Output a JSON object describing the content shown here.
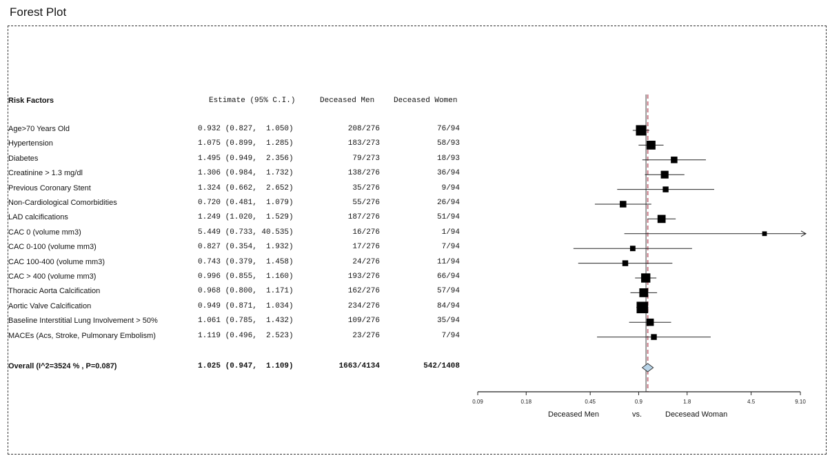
{
  "page": {
    "title": "Forest Plot"
  },
  "headers": {
    "risk_factors": "Risk Factors",
    "estimate": "Estimate (95% C.I.)",
    "deceased_men": "Deceased Men",
    "deceased_women": "Deceased Women"
  },
  "chart_data": {
    "type": "forest",
    "x_scale": "log",
    "xlim": [
      0.09,
      9.1
    ],
    "xticks": [
      {
        "value": 0.09,
        "label": "0.09"
      },
      {
        "value": 0.18,
        "label": "0.18"
      },
      {
        "value": 0.45,
        "label": "0.45"
      },
      {
        "value": 0.9,
        "label": "0.9"
      },
      {
        "value": 1.8,
        "label": "1.8"
      },
      {
        "value": 4.5,
        "label": "4.5"
      },
      {
        "value": 9.1,
        "label": "9.10"
      }
    ],
    "reference_line": 1.0,
    "overall_line": 1.025,
    "axis_captions": {
      "left": "Deceased Men",
      "middle": "vs.",
      "right": "Decesead Woman"
    },
    "rows": [
      {
        "label": "Age>70 Years Old",
        "estimate_text": "0.932 (0.827,  1.050)",
        "est": 0.932,
        "lo": 0.827,
        "hi": 1.05,
        "men": "208/276",
        "women": "76/94",
        "weight": 1.0
      },
      {
        "label": "Hypertension",
        "estimate_text": "1.075 (0.899,  1.285)",
        "est": 1.075,
        "lo": 0.899,
        "hi": 1.285,
        "men": "183/273",
        "women": "58/93",
        "weight": 0.8
      },
      {
        "label": "Diabetes",
        "estimate_text": "1.495 (0.949,  2.356)",
        "est": 1.495,
        "lo": 0.949,
        "hi": 2.356,
        "men": "79/273",
        "women": "18/93",
        "weight": 0.5
      },
      {
        "label": "Creatinine > 1.3 mg/dl",
        "estimate_text": "1.306 (0.984,  1.732)",
        "est": 1.306,
        "lo": 0.984,
        "hi": 1.732,
        "men": "138/276",
        "women": "36/94",
        "weight": 0.65
      },
      {
        "label": "Previous Coronary Stent",
        "estimate_text": "1.324 (0.662,  2.652)",
        "est": 1.324,
        "lo": 0.662,
        "hi": 2.652,
        "men": "35/276",
        "women": "9/94",
        "weight": 0.4
      },
      {
        "label": "Non-Cardiological Comorbidities",
        "estimate_text": "0.720 (0.481,  1.079)",
        "est": 0.72,
        "lo": 0.481,
        "hi": 1.079,
        "men": "55/276",
        "women": "26/94",
        "weight": 0.5
      },
      {
        "label": "LAD calcifications",
        "estimate_text": "1.249 (1.020,  1.529)",
        "est": 1.249,
        "lo": 1.02,
        "hi": 1.529,
        "men": "187/276",
        "women": "51/94",
        "weight": 0.7
      },
      {
        "label": "CAC 0 (volume mm3)",
        "estimate_text": "5.449 (0.733, 40.535)",
        "est": 5.449,
        "lo": 0.733,
        "hi": 40.535,
        "men": "16/276",
        "women": "1/94",
        "weight": 0.25,
        "arrow_right": true
      },
      {
        "label": "CAC 0-100 (volume mm3)",
        "estimate_text": "0.827 (0.354,  1.932)",
        "est": 0.827,
        "lo": 0.354,
        "hi": 1.932,
        "men": "17/276",
        "women": "7/94",
        "weight": 0.35
      },
      {
        "label": "CAC 100-400 (volume mm3)",
        "estimate_text": "0.743 (0.379,  1.458)",
        "est": 0.743,
        "lo": 0.379,
        "hi": 1.458,
        "men": "24/276",
        "women": "11/94",
        "weight": 0.4
      },
      {
        "label": "CAC > 400 (volume mm3)",
        "estimate_text": "0.996 (0.855,  1.160)",
        "est": 0.996,
        "lo": 0.855,
        "hi": 1.16,
        "men": "193/276",
        "women": "66/94",
        "weight": 0.85
      },
      {
        "label": "Thoracic Aorta Calcification",
        "estimate_text": "0.968 (0.800,  1.171)",
        "est": 0.968,
        "lo": 0.8,
        "hi": 1.171,
        "men": "162/276",
        "women": "57/94",
        "weight": 0.8
      },
      {
        "label": "Aortic Valve Calcification",
        "estimate_text": "0.949 (0.871,  1.034)",
        "est": 0.949,
        "lo": 0.871,
        "hi": 1.034,
        "men": "234/276",
        "women": "84/94",
        "weight": 1.15
      },
      {
        "label": "Baseline Interstitial Lung Involvement > 50%",
        "estimate_text": "1.061 (0.785,  1.432)",
        "est": 1.061,
        "lo": 0.785,
        "hi": 1.432,
        "men": "109/276",
        "women": "35/94",
        "weight": 0.6
      },
      {
        "label": "MACEs (Acs, Stroke, Pulmonary Embolism)",
        "estimate_text": "1.119 (0.496,  2.523)",
        "est": 1.119,
        "lo": 0.496,
        "hi": 2.523,
        "men": "23/276",
        "women": "7/94",
        "weight": 0.4
      }
    ],
    "overall": {
      "label": "Overall (I^2=3524 % , P=0.087)",
      "estimate_text": "1.025 (0.947,  1.109)",
      "est": 1.025,
      "lo": 0.947,
      "hi": 1.109,
      "men": "1663/4134",
      "women": "542/1408"
    }
  }
}
